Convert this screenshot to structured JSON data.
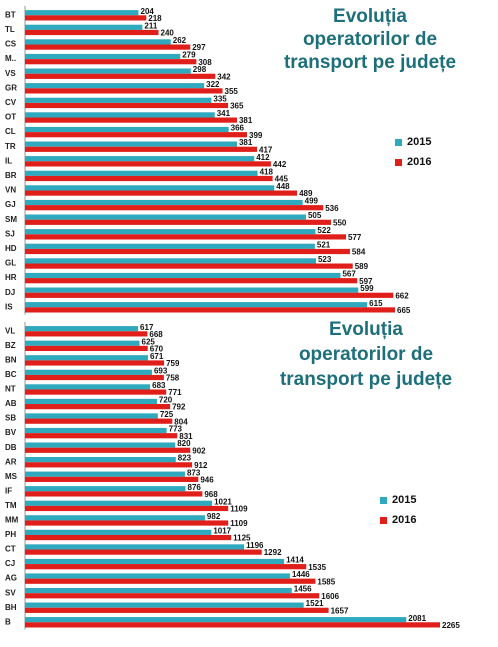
{
  "chart_data": [
    {
      "type": "bar",
      "orientation": "horizontal",
      "title": [
        "Evoluția",
        "operatorilor de",
        "transport pe județe"
      ],
      "categories": [
        "BT",
        "TL",
        "CS",
        "M..",
        "VS",
        "GR",
        "CV",
        "OT",
        "CL",
        "TR",
        "IL",
        "BR",
        "VN",
        "GJ",
        "SM",
        "SJ",
        "HD",
        "GL",
        "HR",
        "DJ",
        "IS"
      ],
      "series": [
        {
          "name": "2015",
          "color": "#2fa9bd",
          "values": [
            204,
            211,
            262,
            279,
            298,
            322,
            335,
            341,
            366,
            381,
            412,
            418,
            448,
            499,
            505,
            522,
            521,
            523,
            567,
            599,
            615
          ]
        },
        {
          "name": "2016",
          "color": "#e01e1a",
          "values": [
            218,
            240,
            297,
            308,
            342,
            355,
            365,
            381,
            399,
            417,
            442,
            445,
            489,
            536,
            550,
            577,
            584,
            589,
            597,
            662,
            665
          ]
        }
      ]
    },
    {
      "type": "bar",
      "orientation": "horizontal",
      "title": [
        "Evoluția",
        "operatorilor de",
        "transport pe județe"
      ],
      "categories": [
        "VL",
        "BZ",
        "BN",
        "BC",
        "NT",
        "AB",
        "SB",
        "BV",
        "DB",
        "AR",
        "MS",
        "IF",
        "TM",
        "MM",
        "PH",
        "CT",
        "CJ",
        "AG",
        "SV",
        "BH",
        "B"
      ],
      "series": [
        {
          "name": "2015",
          "color": "#2fa9bd",
          "values": [
            617,
            625,
            671,
            693,
            683,
            720,
            725,
            773,
            820,
            823,
            873,
            876,
            1021,
            982,
            1017,
            1196,
            1414,
            1446,
            1456,
            1521,
            2081
          ]
        },
        {
          "name": "2016",
          "color": "#e01e1a",
          "values": [
            668,
            670,
            759,
            758,
            771,
            792,
            804,
            831,
            902,
            912,
            946,
            968,
            1109,
            1109,
            1125,
            1292,
            1535,
            1585,
            1606,
            1657,
            2265
          ]
        }
      ]
    }
  ]
}
